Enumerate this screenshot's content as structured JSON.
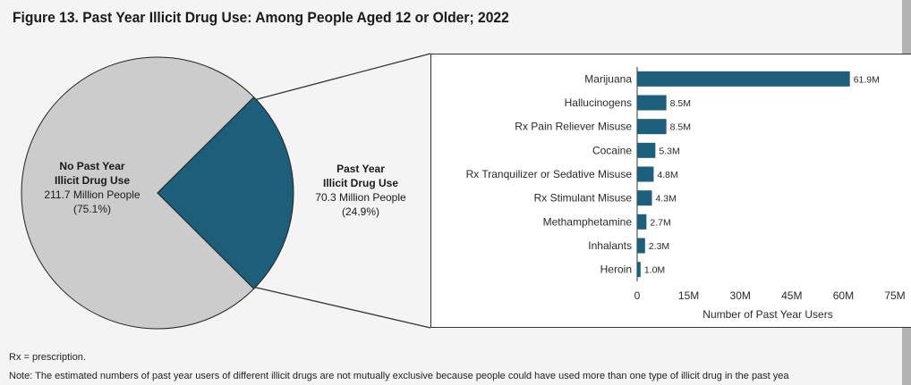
{
  "title": "Figure 13. Past Year Illicit Drug Use: Among People Aged 12 or Older; 2022",
  "colors": {
    "pie_no_use": "#cccccc",
    "pie_use": "#1d5f7b",
    "bar": "#1d5f7b",
    "page": "#f4f4f4"
  },
  "pie": {
    "no_use": {
      "line1": "No Past Year",
      "line2": "Illicit Drug Use",
      "people": "211.7 Million People",
      "percent": "(75.1%)"
    },
    "use": {
      "line1": "Past Year",
      "line2": "Illicit Drug Use",
      "people": "70.3 Million People",
      "percent": "(24.9%)"
    }
  },
  "chart_data": [
    {
      "type": "pie",
      "categories": [
        "No Past Year Illicit Drug Use",
        "Past Year Illicit Drug Use"
      ],
      "values": [
        211.7,
        70.3
      ],
      "percent": [
        75.1,
        24.9
      ],
      "unit": "Million People"
    },
    {
      "type": "bar",
      "orientation": "horizontal",
      "categories": [
        "Marijuana",
        "Hallucinogens",
        "Rx Pain Reliever Misuse",
        "Cocaine",
        "Rx Tranquilizer or Sedative Misuse",
        "Rx Stimulant Misuse",
        "Methamphetamine",
        "Inhalants",
        "Heroin"
      ],
      "values": [
        61.9,
        8.5,
        8.5,
        5.3,
        4.8,
        4.3,
        2.7,
        2.3,
        1.0
      ],
      "value_labels": [
        "61.9M",
        "8.5M",
        "8.5M",
        "5.3M",
        "4.8M",
        "4.3M",
        "2.7M",
        "2.3M",
        "1.0M"
      ],
      "xlabel": "Number of Past Year Users",
      "xlim": [
        0,
        75
      ],
      "xticks": [
        0,
        15,
        30,
        45,
        60,
        75
      ],
      "xtick_labels": [
        "0",
        "15M",
        "30M",
        "45M",
        "60M",
        "75M"
      ],
      "grid": false,
      "legend": "none"
    }
  ],
  "footnotes": [
    "Rx = prescription.",
    "Note: The estimated numbers of past year users of different illicit drugs are not mutually exclusive because people could have used more than one type of illicit drug in the past yea"
  ]
}
